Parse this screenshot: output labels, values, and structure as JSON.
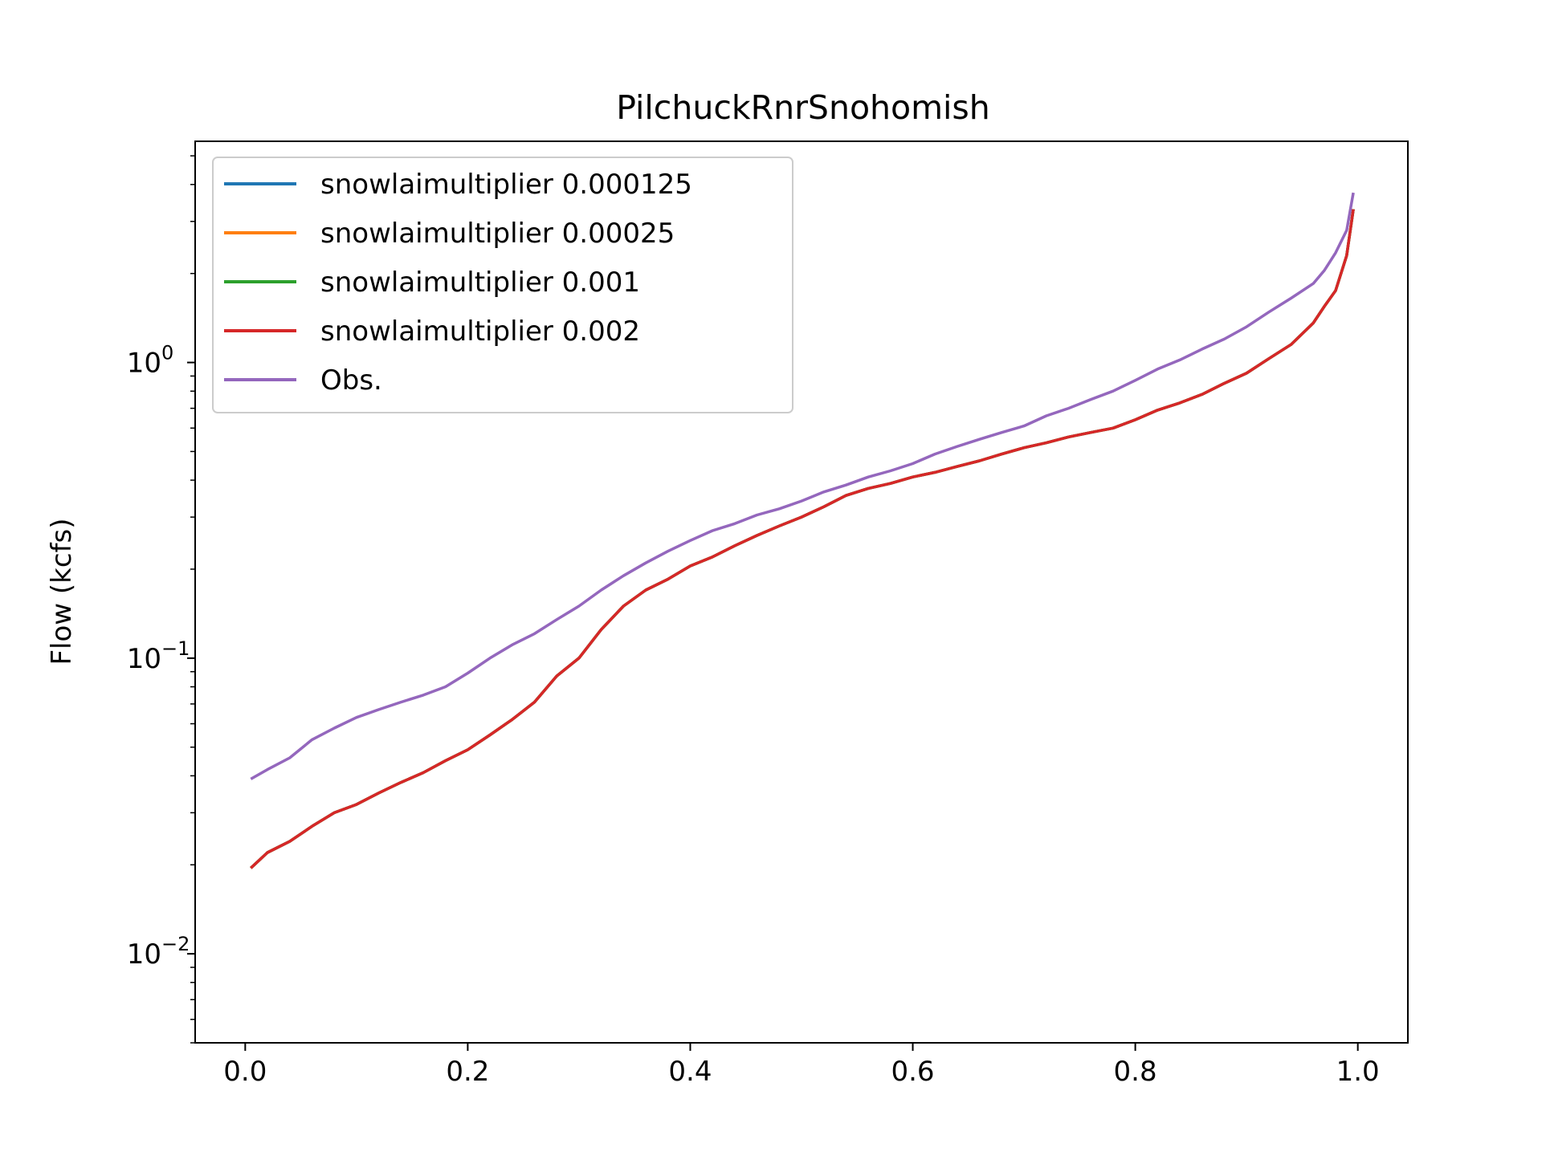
{
  "chart_data": {
    "type": "line",
    "title": "PilchuckRnrSnohomish",
    "xlabel": "",
    "ylabel": "Flow (kcfs)",
    "xlim": [
      -0.045,
      1.045
    ],
    "ylim": [
      0.005,
      5.6
    ],
    "yscale": "log",
    "grid": false,
    "legend_position": "upper-left",
    "x_ticks": [
      {
        "value": 0.0,
        "label": "0.0"
      },
      {
        "value": 0.2,
        "label": "0.2"
      },
      {
        "value": 0.4,
        "label": "0.4"
      },
      {
        "value": 0.6,
        "label": "0.6"
      },
      {
        "value": 0.8,
        "label": "0.8"
      },
      {
        "value": 1.0,
        "label": "1.0"
      }
    ],
    "y_ticks": [
      {
        "value": 0.01,
        "base": "10",
        "exp": "−2"
      },
      {
        "value": 0.1,
        "base": "10",
        "exp": "−1"
      },
      {
        "value": 1,
        "base": "10",
        "exp": "0"
      }
    ],
    "x": [
      0.005,
      0.02,
      0.04,
      0.06,
      0.08,
      0.1,
      0.12,
      0.14,
      0.16,
      0.18,
      0.2,
      0.22,
      0.24,
      0.26,
      0.28,
      0.3,
      0.32,
      0.34,
      0.36,
      0.38,
      0.4,
      0.42,
      0.44,
      0.46,
      0.48,
      0.5,
      0.52,
      0.54,
      0.56,
      0.58,
      0.6,
      0.62,
      0.64,
      0.66,
      0.68,
      0.7,
      0.72,
      0.74,
      0.76,
      0.78,
      0.8,
      0.82,
      0.84,
      0.86,
      0.88,
      0.9,
      0.92,
      0.94,
      0.96,
      0.97,
      0.98,
      0.99,
      0.996
    ],
    "series": [
      {
        "name": "snowlaimultiplier 0.000125",
        "color": "#1f77b4",
        "values": [
          0.0195,
          0.022,
          0.024,
          0.027,
          0.03,
          0.032,
          0.035,
          0.038,
          0.041,
          0.045,
          0.049,
          0.055,
          0.062,
          0.071,
          0.087,
          0.1,
          0.125,
          0.15,
          0.17,
          0.185,
          0.205,
          0.22,
          0.24,
          0.26,
          0.28,
          0.3,
          0.325,
          0.355,
          0.375,
          0.39,
          0.41,
          0.425,
          0.445,
          0.465,
          0.49,
          0.515,
          0.535,
          0.56,
          0.58,
          0.6,
          0.64,
          0.69,
          0.73,
          0.78,
          0.85,
          0.92,
          1.03,
          1.15,
          1.36,
          1.55,
          1.75,
          2.3,
          3.3
        ]
      },
      {
        "name": "snowlaimultiplier 0.00025",
        "color": "#ff7f0e",
        "values": [
          0.0195,
          0.022,
          0.024,
          0.027,
          0.03,
          0.032,
          0.035,
          0.038,
          0.041,
          0.045,
          0.049,
          0.055,
          0.062,
          0.071,
          0.087,
          0.1,
          0.125,
          0.15,
          0.17,
          0.185,
          0.205,
          0.22,
          0.24,
          0.26,
          0.28,
          0.3,
          0.325,
          0.355,
          0.375,
          0.39,
          0.41,
          0.425,
          0.445,
          0.465,
          0.49,
          0.515,
          0.535,
          0.56,
          0.58,
          0.6,
          0.64,
          0.69,
          0.73,
          0.78,
          0.85,
          0.92,
          1.03,
          1.15,
          1.36,
          1.55,
          1.75,
          2.3,
          3.3
        ]
      },
      {
        "name": "snowlaimultiplier 0.001",
        "color": "#2ca02c",
        "values": [
          0.0195,
          0.022,
          0.024,
          0.027,
          0.03,
          0.032,
          0.035,
          0.038,
          0.041,
          0.045,
          0.049,
          0.055,
          0.062,
          0.071,
          0.087,
          0.1,
          0.125,
          0.15,
          0.17,
          0.185,
          0.205,
          0.22,
          0.24,
          0.26,
          0.28,
          0.3,
          0.325,
          0.355,
          0.375,
          0.39,
          0.41,
          0.425,
          0.445,
          0.465,
          0.49,
          0.515,
          0.535,
          0.56,
          0.58,
          0.6,
          0.64,
          0.69,
          0.73,
          0.78,
          0.85,
          0.92,
          1.03,
          1.15,
          1.36,
          1.55,
          1.75,
          2.3,
          3.3
        ]
      },
      {
        "name": "snowlaimultiplier 0.002",
        "color": "#d62728",
        "values": [
          0.0195,
          0.022,
          0.024,
          0.027,
          0.03,
          0.032,
          0.035,
          0.038,
          0.041,
          0.045,
          0.049,
          0.055,
          0.062,
          0.071,
          0.087,
          0.1,
          0.125,
          0.15,
          0.17,
          0.185,
          0.205,
          0.22,
          0.24,
          0.26,
          0.28,
          0.3,
          0.325,
          0.355,
          0.375,
          0.39,
          0.41,
          0.425,
          0.445,
          0.465,
          0.49,
          0.515,
          0.535,
          0.56,
          0.58,
          0.6,
          0.64,
          0.69,
          0.73,
          0.78,
          0.85,
          0.92,
          1.03,
          1.15,
          1.36,
          1.55,
          1.75,
          2.3,
          3.3
        ]
      },
      {
        "name": "Obs.",
        "color": "#9467bd",
        "values": [
          0.039,
          0.042,
          0.046,
          0.053,
          0.058,
          0.063,
          0.067,
          0.071,
          0.075,
          0.08,
          0.089,
          0.1,
          0.111,
          0.121,
          0.135,
          0.15,
          0.17,
          0.19,
          0.21,
          0.23,
          0.25,
          0.27,
          0.285,
          0.305,
          0.32,
          0.34,
          0.365,
          0.385,
          0.41,
          0.43,
          0.455,
          0.49,
          0.52,
          0.55,
          0.58,
          0.61,
          0.66,
          0.7,
          0.75,
          0.8,
          0.87,
          0.95,
          1.02,
          1.11,
          1.2,
          1.32,
          1.48,
          1.65,
          1.85,
          2.05,
          2.35,
          2.8,
          3.75
        ]
      }
    ]
  }
}
